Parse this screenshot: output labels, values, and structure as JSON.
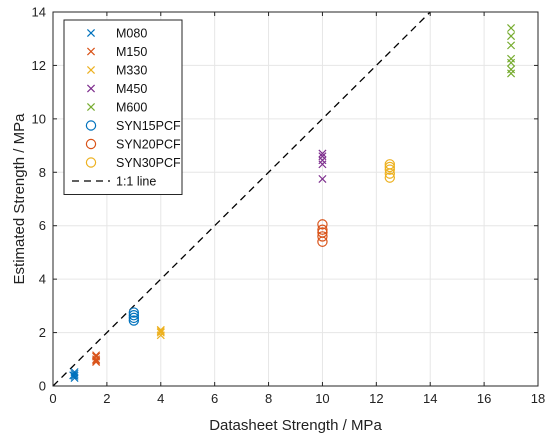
{
  "chart_data": {
    "type": "scatter",
    "title": "",
    "xlabel": "Datasheet Strength / MPa",
    "ylabel": "Estimated Strength / MPa",
    "xlim": [
      0,
      18
    ],
    "ylim": [
      0,
      14
    ],
    "xticks": [
      0,
      2,
      4,
      6,
      8,
      10,
      12,
      14,
      16,
      18
    ],
    "yticks": [
      0,
      2,
      4,
      6,
      8,
      10,
      12,
      14
    ],
    "grid": true,
    "legend_position": "top-left",
    "series": [
      {
        "name": "M080",
        "marker": "x",
        "color": "#0072BD",
        "points": [
          [
            0.8,
            0.3
          ],
          [
            0.8,
            0.38
          ],
          [
            0.8,
            0.45
          ],
          [
            0.8,
            0.52
          ],
          [
            0.75,
            0.4
          ]
        ]
      },
      {
        "name": "M150",
        "marker": "x",
        "color": "#D95319",
        "points": [
          [
            1.6,
            0.9
          ],
          [
            1.6,
            1.0
          ],
          [
            1.6,
            1.1
          ],
          [
            1.6,
            1.15
          ],
          [
            1.6,
            0.95
          ]
        ]
      },
      {
        "name": "M330",
        "marker": "x",
        "color": "#EDB120",
        "points": [
          [
            4.0,
            1.9
          ],
          [
            4.0,
            2.0
          ],
          [
            4.0,
            2.05
          ],
          [
            4.0,
            2.1
          ]
        ]
      },
      {
        "name": "M450",
        "marker": "x",
        "color": "#7E2F8E",
        "points": [
          [
            10.0,
            7.75
          ],
          [
            10.0,
            8.3
          ],
          [
            10.0,
            8.45
          ],
          [
            10.0,
            8.6
          ],
          [
            10.0,
            8.7
          ]
        ]
      },
      {
        "name": "M600",
        "marker": "x",
        "color": "#77AC30",
        "points": [
          [
            17.0,
            11.7
          ],
          [
            17.0,
            11.85
          ],
          [
            17.0,
            12.1
          ],
          [
            17.0,
            12.25
          ],
          [
            17.0,
            12.75
          ],
          [
            17.0,
            13.1
          ],
          [
            17.0,
            13.4
          ]
        ]
      },
      {
        "name": "SYN15PCF",
        "marker": "o",
        "color": "#0072BD",
        "points": [
          [
            3.0,
            2.45
          ],
          [
            3.0,
            2.55
          ],
          [
            3.0,
            2.65
          ],
          [
            3.0,
            2.75
          ]
        ]
      },
      {
        "name": "SYN20PCF",
        "marker": "o",
        "color": "#D95319",
        "points": [
          [
            10.0,
            5.4
          ],
          [
            10.0,
            5.6
          ],
          [
            10.0,
            5.75
          ],
          [
            10.0,
            5.85
          ],
          [
            10.0,
            6.05
          ]
        ]
      },
      {
        "name": "SYN30PCF",
        "marker": "o",
        "color": "#EDB120",
        "points": [
          [
            12.5,
            7.8
          ],
          [
            12.5,
            7.95
          ],
          [
            12.5,
            8.1
          ],
          [
            12.5,
            8.2
          ],
          [
            12.5,
            8.3
          ]
        ]
      }
    ],
    "reference_line": {
      "name": "1:1 line",
      "style": "dashed",
      "color": "#000000",
      "from": [
        0,
        0
      ],
      "to": [
        14,
        14
      ]
    }
  }
}
